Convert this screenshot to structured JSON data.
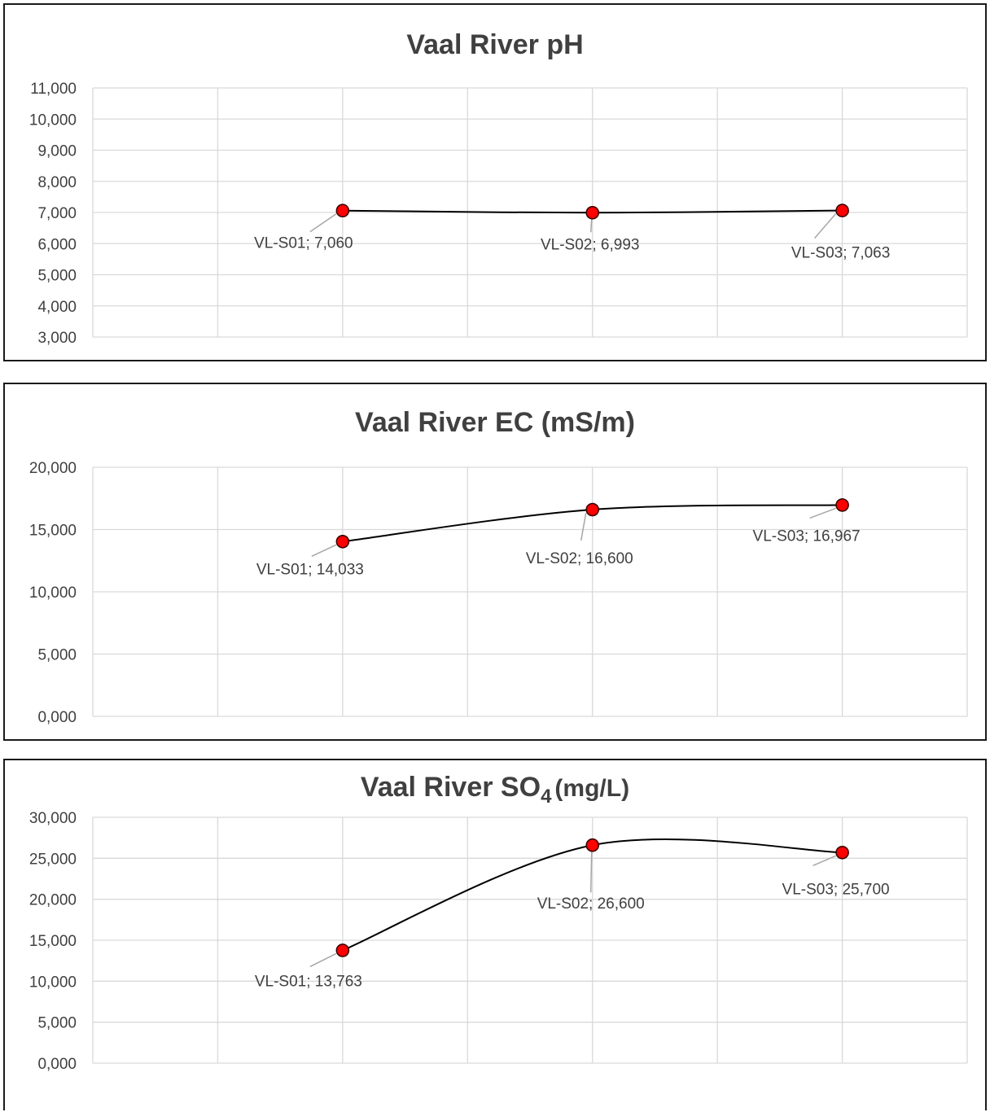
{
  "chart_data": [
    {
      "type": "line",
      "title": "Vaal River pH",
      "title_sub": "",
      "title_tail": "",
      "categories": [
        "VL-S01",
        "VL-S02",
        "VL-S03"
      ],
      "values": [
        7.06,
        6.993,
        7.063
      ],
      "point_labels": [
        "VL-S01; 7,060",
        "VL-S02; 6,993",
        "VL-S03; 7,063"
      ],
      "y_ticks": [
        "3,000",
        "4,000",
        "5,000",
        "6,000",
        "7,000",
        "8,000",
        "9,000",
        "10,000",
        "11,000"
      ],
      "ylim": [
        3,
        11
      ],
      "ystep": 1,
      "smoothed": true,
      "grid": true,
      "legend": "none",
      "marker_color": "#ff0000",
      "line_color": "#000000"
    },
    {
      "type": "line",
      "title": "Vaal River EC (mS/m)",
      "title_sub": "",
      "title_tail": "",
      "categories": [
        "VL-S01",
        "VL-S02",
        "VL-S03"
      ],
      "values": [
        14.033,
        16.6,
        16.967
      ],
      "point_labels": [
        "VL-S01; 14,033",
        "VL-S02; 16,600",
        "VL-S03; 16,967"
      ],
      "y_ticks": [
        "0,000",
        "5,000",
        "10,000",
        "15,000",
        "20,000"
      ],
      "ylim": [
        0,
        20
      ],
      "ystep": 5,
      "smoothed": true,
      "grid": true,
      "legend": "none",
      "marker_color": "#ff0000",
      "line_color": "#000000"
    },
    {
      "type": "line",
      "title": "Vaal River SO",
      "title_sub": "4",
      "title_tail": "(mg/L)",
      "categories": [
        "VL-S01",
        "VL-S02",
        "VL-S03"
      ],
      "values": [
        13.763,
        26.6,
        25.7
      ],
      "point_labels": [
        "VL-S01; 13,763",
        "VL-S02; 26,600",
        "VL-S03; 25,700"
      ],
      "y_ticks": [
        "0,000",
        "5,000",
        "10,000",
        "15,000",
        "20,000",
        "25,000",
        "30,000"
      ],
      "ylim": [
        0,
        30
      ],
      "ystep": 5,
      "smoothed": true,
      "grid": true,
      "legend": "none",
      "marker_color": "#ff0000",
      "line_color": "#000000"
    }
  ]
}
